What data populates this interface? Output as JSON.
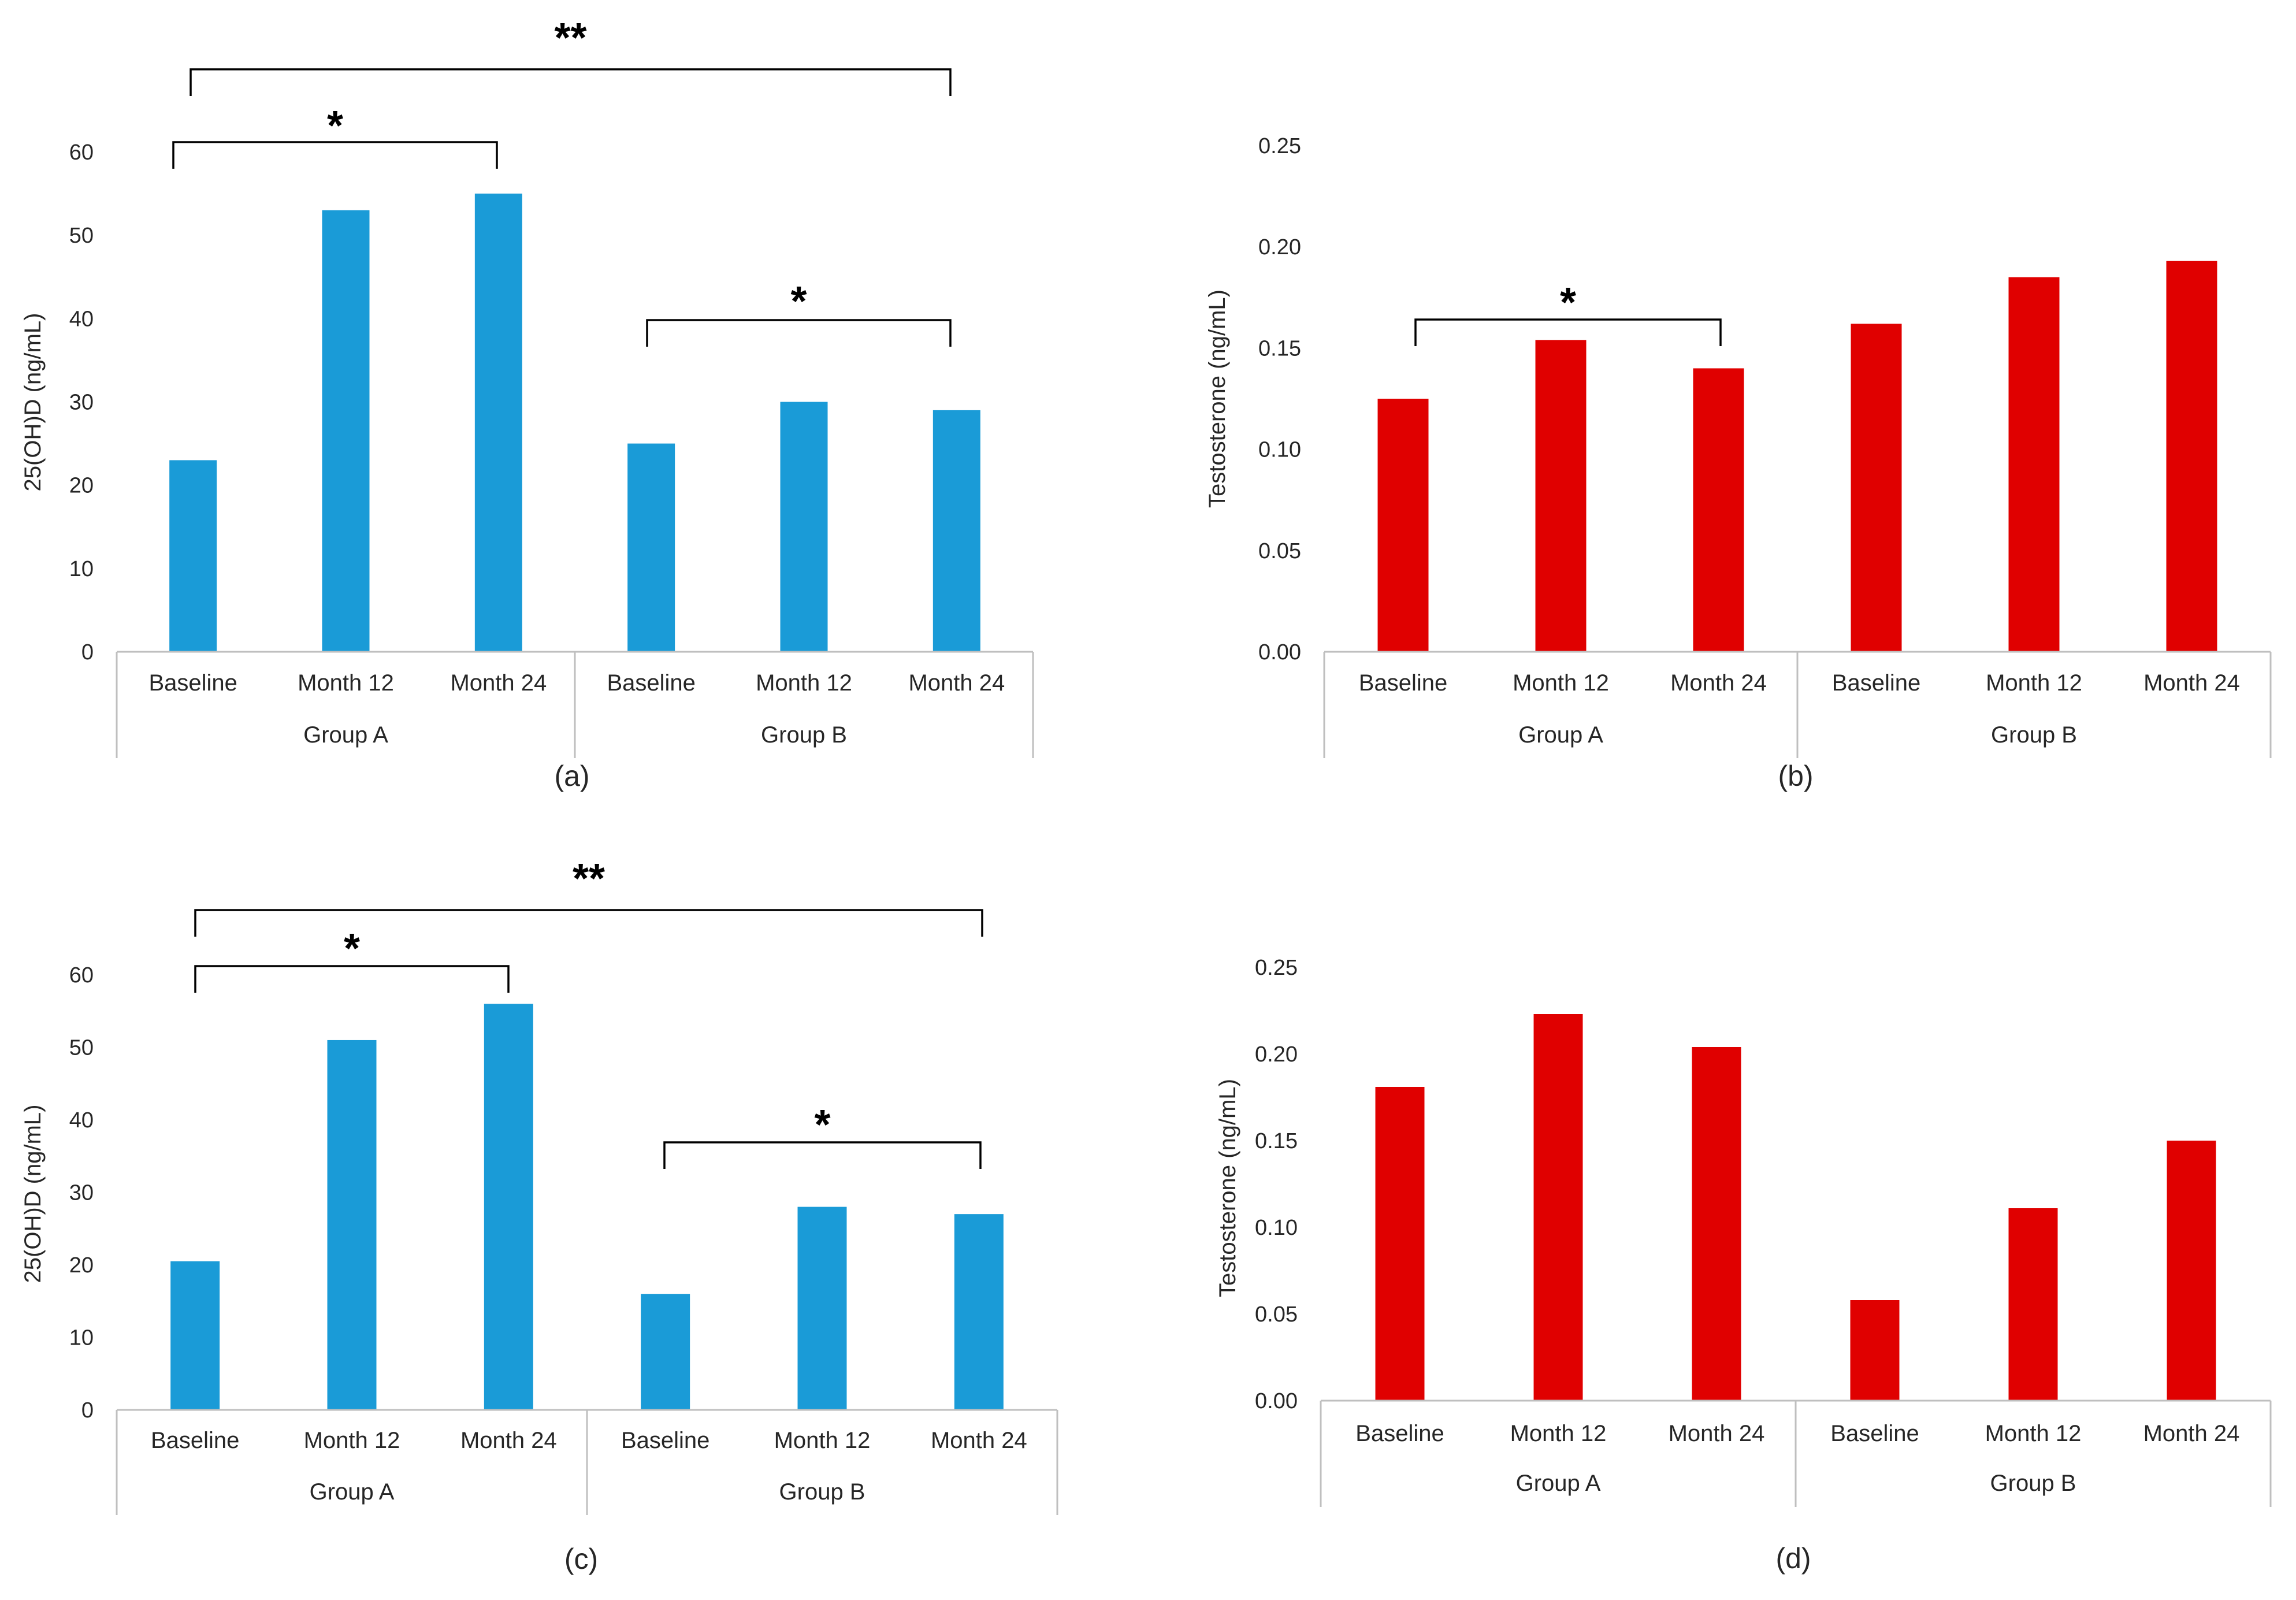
{
  "colors": {
    "blue": "#1a9bd7",
    "red": "#e00000"
  },
  "chart_data": [
    {
      "id": "a",
      "type": "bar",
      "panel_label": "(a)",
      "ylabel": "25(OH)D (ng/mL)",
      "ylim": [
        0,
        60
      ],
      "yticks": [
        "0",
        "10",
        "20",
        "30",
        "40",
        "50",
        "60"
      ],
      "tick_values": [
        0,
        10,
        20,
        30,
        40,
        50,
        60
      ],
      "categories": [
        "Baseline",
        "Month 12",
        "Month 24",
        "Baseline",
        "Month 12",
        "Month 24"
      ],
      "groups": [
        "Group A",
        "Group B"
      ],
      "values": [
        23,
        53,
        55,
        25,
        30,
        29
      ],
      "color": "blue",
      "significance": [
        {
          "from": 0,
          "to": 2,
          "label": "*"
        },
        {
          "from": 0,
          "to": 5,
          "label": "**"
        },
        {
          "from": 3,
          "to": 5,
          "label": "*"
        }
      ]
    },
    {
      "id": "b",
      "type": "bar",
      "panel_label": "(b)",
      "ylabel": "Testosterone (ng/mL)",
      "ylim": [
        0,
        0.25
      ],
      "yticks": [
        "0.00",
        "0.05",
        "0.10",
        "0.15",
        "0.20",
        "0.25"
      ],
      "tick_values": [
        0,
        0.05,
        0.1,
        0.15,
        0.2,
        0.25
      ],
      "categories": [
        "Baseline",
        "Month 12",
        "Month 24",
        "Baseline",
        "Month 12",
        "Month 24"
      ],
      "groups": [
        "Group A",
        "Group B"
      ],
      "values": [
        0.125,
        0.154,
        0.14,
        0.162,
        0.185,
        0.193
      ],
      "color": "red",
      "significance": [
        {
          "from": 0,
          "to": 2,
          "label": "*"
        }
      ]
    },
    {
      "id": "c",
      "type": "bar",
      "panel_label": "(c)",
      "ylabel": "25(OH)D (ng/mL)",
      "ylim": [
        0,
        60
      ],
      "yticks": [
        "0",
        "10",
        "20",
        "30",
        "40",
        "50",
        "60"
      ],
      "tick_values": [
        0,
        10,
        20,
        30,
        40,
        50,
        60
      ],
      "categories": [
        "Baseline",
        "Month 12",
        "Month 24",
        "Baseline",
        "Month 12",
        "Month 24"
      ],
      "groups": [
        "Group A",
        "Group B"
      ],
      "values": [
        20.5,
        51,
        56,
        16,
        28,
        27
      ],
      "color": "blue",
      "significance": [
        {
          "from": 0,
          "to": 2,
          "label": "*"
        },
        {
          "from": 0,
          "to": 5,
          "label": "**"
        },
        {
          "from": 3,
          "to": 5,
          "label": "*"
        }
      ]
    },
    {
      "id": "d",
      "type": "bar",
      "panel_label": "(d)",
      "ylabel": "Testosterone (ng/mL)",
      "ylim": [
        0,
        0.25
      ],
      "yticks": [
        "0.00",
        "0.05",
        "0.10",
        "0.15",
        "0.20",
        "0.25"
      ],
      "tick_values": [
        0,
        0.05,
        0.1,
        0.15,
        0.2,
        0.25
      ],
      "categories": [
        "Baseline",
        "Month 12",
        "Month 24",
        "Baseline",
        "Month 12",
        "Month 24"
      ],
      "groups": [
        "Group A",
        "Group B"
      ],
      "values": [
        0.181,
        0.223,
        0.204,
        0.058,
        0.111,
        0.15
      ],
      "color": "red",
      "significance": []
    }
  ]
}
